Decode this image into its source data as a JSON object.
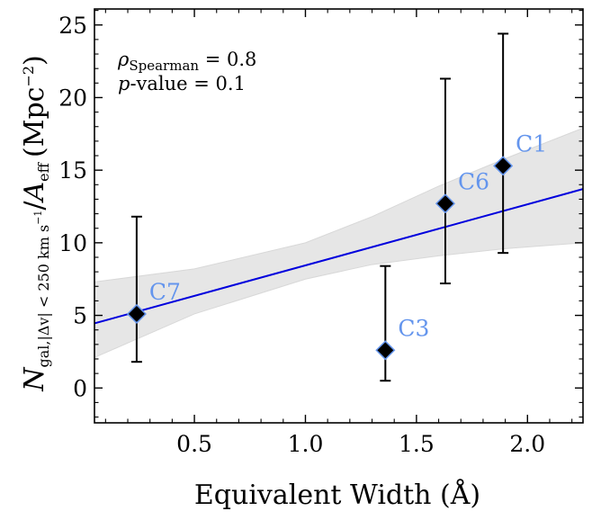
{
  "chart_data": {
    "type": "scatter",
    "xlabel": "Equivalent Width (Å)",
    "ylabel": {
      "symbol": "N",
      "sub_gal": "gal,",
      "sub_cond": "|Δv| < 250 km s",
      "sub_exp": "−1",
      "slash": "/",
      "denom_symbol": "A",
      "denom_sub": "eff",
      "units": "(Mpc",
      "units_exp": "−2",
      "units_close": ")"
    },
    "xlim": [
      0.05,
      2.25
    ],
    "ylim": [
      -2.4,
      26.1
    ],
    "xticks": [
      0.5,
      1.0,
      1.5,
      2.0
    ],
    "xtick_labels": [
      "0.5",
      "1.0",
      "1.5",
      "2.0"
    ],
    "yticks": [
      0,
      5,
      10,
      15,
      20,
      25
    ],
    "ytick_labels": [
      "0",
      "5",
      "10",
      "15",
      "20",
      "25"
    ],
    "annotation": {
      "line1_symbol": "ρ",
      "line1_sub": "Spearman",
      "line1_value": " = 0.8",
      "line2_symbol": "p",
      "line2_text": "-value = 0.1"
    },
    "points": [
      {
        "label": "C7",
        "x": 0.24,
        "y": 5.1,
        "yerr_low": 1.8,
        "yerr_high": 11.8
      },
      {
        "label": "C3",
        "x": 1.36,
        "y": 2.6,
        "yerr_low": 0.5,
        "yerr_high": 8.4
      },
      {
        "label": "C6",
        "x": 1.63,
        "y": 12.7,
        "yerr_low": 7.2,
        "yerr_high": 21.3
      },
      {
        "label": "C1",
        "x": 1.89,
        "y": 15.3,
        "yerr_low": 9.3,
        "yerr_high": 24.4
      }
    ],
    "fit_line": {
      "x": [
        0.05,
        2.25
      ],
      "y": [
        4.45,
        13.7
      ]
    },
    "confidence_band": {
      "x": [
        0.05,
        0.5,
        1.0,
        1.3,
        1.6,
        1.9,
        2.25
      ],
      "upper": [
        7.3,
        8.2,
        10.0,
        11.8,
        13.9,
        15.8,
        17.9
      ],
      "lower": [
        2.1,
        5.1,
        7.5,
        8.5,
        9.1,
        9.6,
        10.0
      ]
    },
    "colors": {
      "fit_line": "#0000dd",
      "band": "#e6e6e6",
      "marker_fill": "#000000",
      "marker_edge": "#6495ed",
      "errorbar": "#000000",
      "point_label": "#6495ed"
    },
    "grid": false,
    "legend": "none"
  }
}
